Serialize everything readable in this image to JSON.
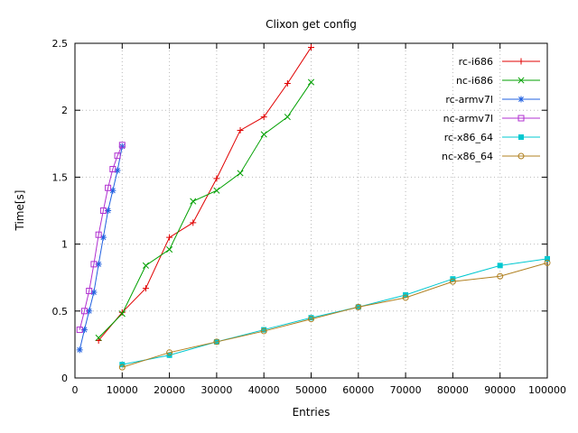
{
  "chart_data": {
    "type": "line",
    "title": "Clixon get config",
    "xlabel": "Entries",
    "ylabel": "Time[s]",
    "xlim": [
      0,
      100000
    ],
    "ylim": [
      0,
      2.5
    ],
    "grid": true,
    "legend_position": "top-right-inside",
    "xticks": [
      0,
      10000,
      20000,
      30000,
      40000,
      50000,
      60000,
      70000,
      80000,
      90000,
      100000
    ],
    "xtick_labels": [
      "0",
      "10000",
      "20000",
      "30000",
      "40000",
      "50000",
      "60000",
      "70000",
      "80000",
      "90000",
      "100000"
    ],
    "yticks": [
      0,
      0.5,
      1,
      1.5,
      2,
      2.5
    ],
    "ytick_labels": [
      "0",
      "0.5",
      "1",
      "1.5",
      "2",
      "2.5"
    ],
    "series": [
      {
        "name": "rc-i686",
        "color": "#e00000",
        "marker": "plus",
        "x": [
          5000,
          10000,
          15000,
          20000,
          25000,
          30000,
          35000,
          40000,
          45000,
          50000
        ],
        "y": [
          0.28,
          0.49,
          0.67,
          1.05,
          1.16,
          1.49,
          1.85,
          1.95,
          2.2,
          2.47
        ]
      },
      {
        "name": "nc-i686",
        "color": "#00a000",
        "marker": "cross",
        "x": [
          5000,
          10000,
          15000,
          20000,
          25000,
          30000,
          35000,
          40000,
          45000,
          50000
        ],
        "y": [
          0.3,
          0.48,
          0.84,
          0.96,
          1.32,
          1.4,
          1.53,
          1.82,
          1.95,
          2.21
        ]
      },
      {
        "name": "rc-armv7l",
        "color": "#2060e0",
        "marker": "asterisk",
        "x": [
          1000,
          2000,
          3000,
          4000,
          5000,
          6000,
          7000,
          8000,
          9000,
          10000
        ],
        "y": [
          0.21,
          0.36,
          0.5,
          0.64,
          0.85,
          1.05,
          1.25,
          1.4,
          1.55,
          1.73
        ]
      },
      {
        "name": "nc-armv7l",
        "color": "#b030d0",
        "marker": "square-open",
        "x": [
          1000,
          2000,
          3000,
          4000,
          5000,
          6000,
          7000,
          8000,
          9000,
          10000
        ],
        "y": [
          0.36,
          0.5,
          0.65,
          0.85,
          1.07,
          1.25,
          1.42,
          1.56,
          1.66,
          1.74
        ]
      },
      {
        "name": "rc-x86_64",
        "color": "#00c8d0",
        "marker": "square-filled",
        "x": [
          10000,
          20000,
          30000,
          40000,
          50000,
          60000,
          70000,
          80000,
          90000,
          100000
        ],
        "y": [
          0.1,
          0.17,
          0.27,
          0.36,
          0.45,
          0.53,
          0.62,
          0.74,
          0.84,
          0.89
        ]
      },
      {
        "name": "nc-x86_64",
        "color": "#b08020",
        "marker": "circle-open",
        "x": [
          10000,
          20000,
          30000,
          40000,
          50000,
          60000,
          70000,
          80000,
          90000,
          100000
        ],
        "y": [
          0.08,
          0.19,
          0.27,
          0.35,
          0.44,
          0.53,
          0.6,
          0.72,
          0.76,
          0.86
        ]
      }
    ]
  }
}
